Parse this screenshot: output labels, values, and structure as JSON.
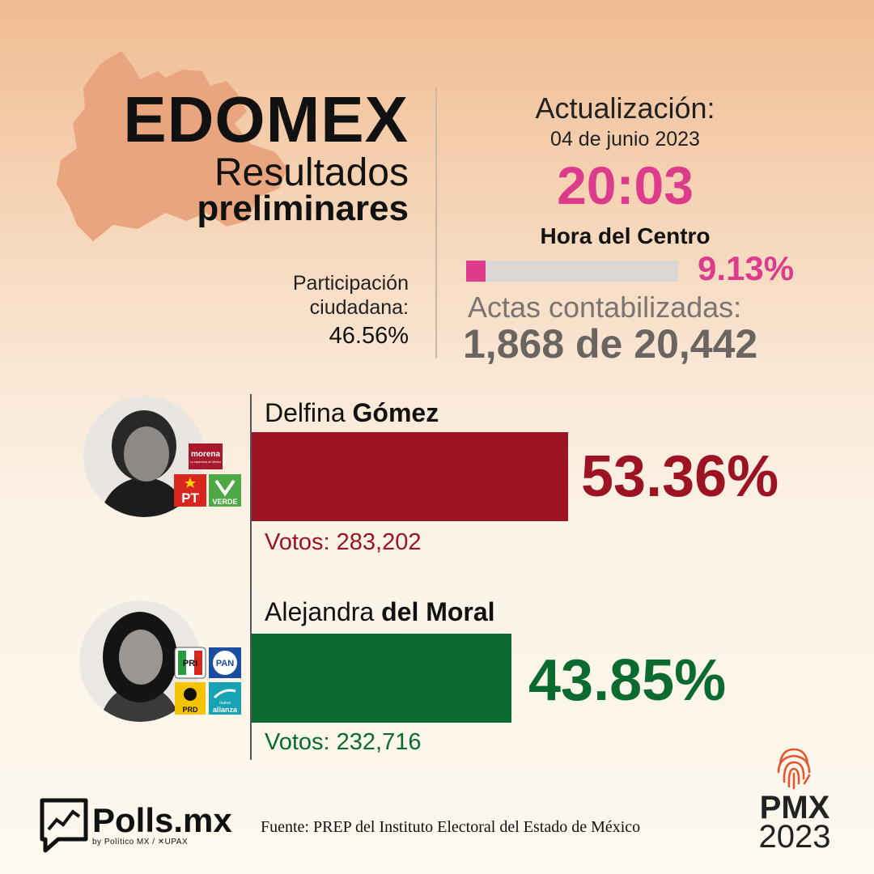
{
  "header": {
    "title": "EDOMEX",
    "subtitle_line1": "Resultados",
    "subtitle_line2": "preliminares"
  },
  "participation": {
    "label": "Participación ciudadana:",
    "value": "46.56%"
  },
  "update": {
    "label": "Actualización:",
    "date": "04 de junio 2023",
    "time": "20:03",
    "timezone": "Hora del Centro",
    "progress_percent_text": "9.13%",
    "progress_fraction": 0.0913,
    "actas_label": "Actas contabilizadas:",
    "actas_count": "1,868 de 20,442"
  },
  "candidates": [
    {
      "first_name": "Delfina ",
      "last_name": "Gómez",
      "percent_text": "53.36%",
      "percent_value": 53.36,
      "votes_text": "Votos: 283,202",
      "color": "#9c1424",
      "parties": [
        {
          "icon": "morena-logo",
          "label": "morena",
          "tagline": "La esperanza de México",
          "color": "#a8192c"
        },
        {
          "icon": "pt-logo",
          "label": "PT",
          "color": "#d7261e"
        },
        {
          "icon": "verde-logo",
          "label": "VERDE",
          "color": "#4ea843"
        }
      ]
    },
    {
      "first_name": "Alejandra ",
      "last_name": "del Moral",
      "percent_text": "43.85%",
      "percent_value": 43.85,
      "votes_text": "Votos: 232,716",
      "color": "#0b6a2f",
      "parties": [
        {
          "icon": "pri-logo",
          "label": "PRI",
          "color": "#2a9a43"
        },
        {
          "icon": "pan-logo",
          "label": "PAN",
          "color": "#1b4ea0"
        },
        {
          "icon": "prd-logo",
          "label": "PRD",
          "color": "#f5c400"
        },
        {
          "icon": "nueva-alianza-logo",
          "label": "alianza",
          "tagline": "nueva",
          "color": "#18a3b5"
        }
      ]
    }
  ],
  "footer": {
    "brand": "Polls.mx",
    "brand_by": "by Político MX / ✕UPAX",
    "source": "Fuente: PREP del Instituto Electoral del Estado de México",
    "pmx_label": "PMX",
    "pmx_year": "2023"
  },
  "colors": {
    "accent_pink": "#dd3b8c",
    "morena_red": "#9c1424",
    "alliance_green": "#0b6a2f",
    "map_fill": "#e8a57e"
  }
}
